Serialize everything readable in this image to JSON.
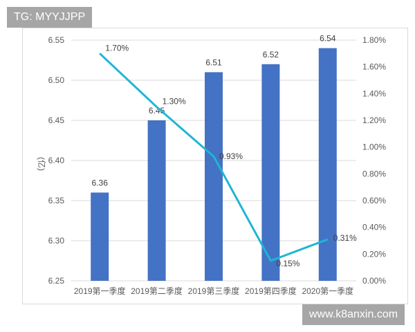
{
  "watermarks": {
    "top": "TG: MYYJJPP",
    "bottom": "www.k8anxin.com"
  },
  "chart_data": {
    "type": "bar+line",
    "title": "",
    "categories": [
      "2019第一季度",
      "2019第二季度",
      "2019第三季度",
      "2019第四季度",
      "2020第一季度"
    ],
    "series": [
      {
        "name": "bar",
        "type": "bar",
        "axis": "left",
        "color": "#4472c4",
        "values": [
          6.36,
          6.45,
          6.51,
          6.52,
          6.54
        ],
        "labels": [
          "6.36",
          "6.45",
          "6.51",
          "6.52",
          "6.54"
        ]
      },
      {
        "name": "line",
        "type": "line",
        "axis": "right",
        "color": "#1fb5d4",
        "values": [
          1.7,
          1.3,
          0.93,
          0.15,
          0.31
        ],
        "labels": [
          "1.70%",
          "1.30%",
          "0.93%",
          "0.15%",
          "0.31%"
        ]
      }
    ],
    "ylabel": "(亿)",
    "ylim": [
      6.25,
      6.55
    ],
    "y_ticks": [
      "6.25",
      "6.30",
      "6.35",
      "6.40",
      "6.45",
      "6.50",
      "6.55"
    ],
    "y2lim": [
      0,
      1.8
    ],
    "y2_ticks": [
      "0.00%",
      "0.20%",
      "0.40%",
      "0.60%",
      "0.80%",
      "1.00%",
      "1.20%",
      "1.40%",
      "1.60%",
      "1.80%"
    ],
    "grid": true,
    "legend": "none"
  }
}
